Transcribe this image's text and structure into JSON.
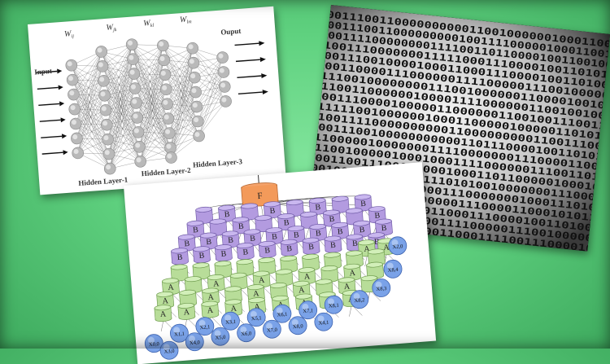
{
  "neural_network": {
    "weights": [
      "W",
      "W",
      "W",
      "W"
    ],
    "weight_subscripts": [
      "ij",
      "jk",
      "kl",
      "lm"
    ],
    "input_label": "Input",
    "output_label": "Ouput",
    "hidden_labels": [
      "Hidden Layer-1",
      "Hidden Layer-2",
      "Hidden Layer-3"
    ]
  },
  "binary": {
    "rows": [
      "00111001100000000001100100000010001100",
      "001110011000000000100111100000100011001",
      "001111000000001111001101100001001100100",
      "1001110000000111110001110000100110101",
      "0011100100001000110001110000100110100",
      "0011000011100000011110000011100100000",
      "1110010000000011100100000011000010010",
      "1100110000001000011110000001100100100",
      "0011100001000001100000011001001110011",
      "1111100100000010001100000100000110101",
      "1001111000000000011000000000110011100",
      "00111001000000000001101110000100110101",
      "1100000100000001111000000011100001100",
      "1100100000100010001111000000111001101",
      "0011001110000000010001101100000100010",
      "00100100000000011101010010000000111000",
      "0011000110000000011100000001000111010",
      "1100111111000100000111000011000101011",
      "0011100100001000110001110000100110100",
      "0011000011100000011110000011100100000",
      "1111100011001000011000111100111000010"
    ]
  },
  "cnn": {
    "top_node": "F",
    "b_label": "B",
    "a_label": "A",
    "x_labels": [
      "X0,0",
      "X1,1",
      "X2,0",
      "X2,1",
      "X3,0",
      "X3,1",
      "X4,0",
      "X4,1",
      "X5,0",
      "X5,1",
      "X6,0",
      "X6,1",
      "X7,0",
      "X7,1",
      "X8,0",
      "X8,1",
      "X8,2",
      "X8,3",
      "X8,4"
    ]
  }
}
